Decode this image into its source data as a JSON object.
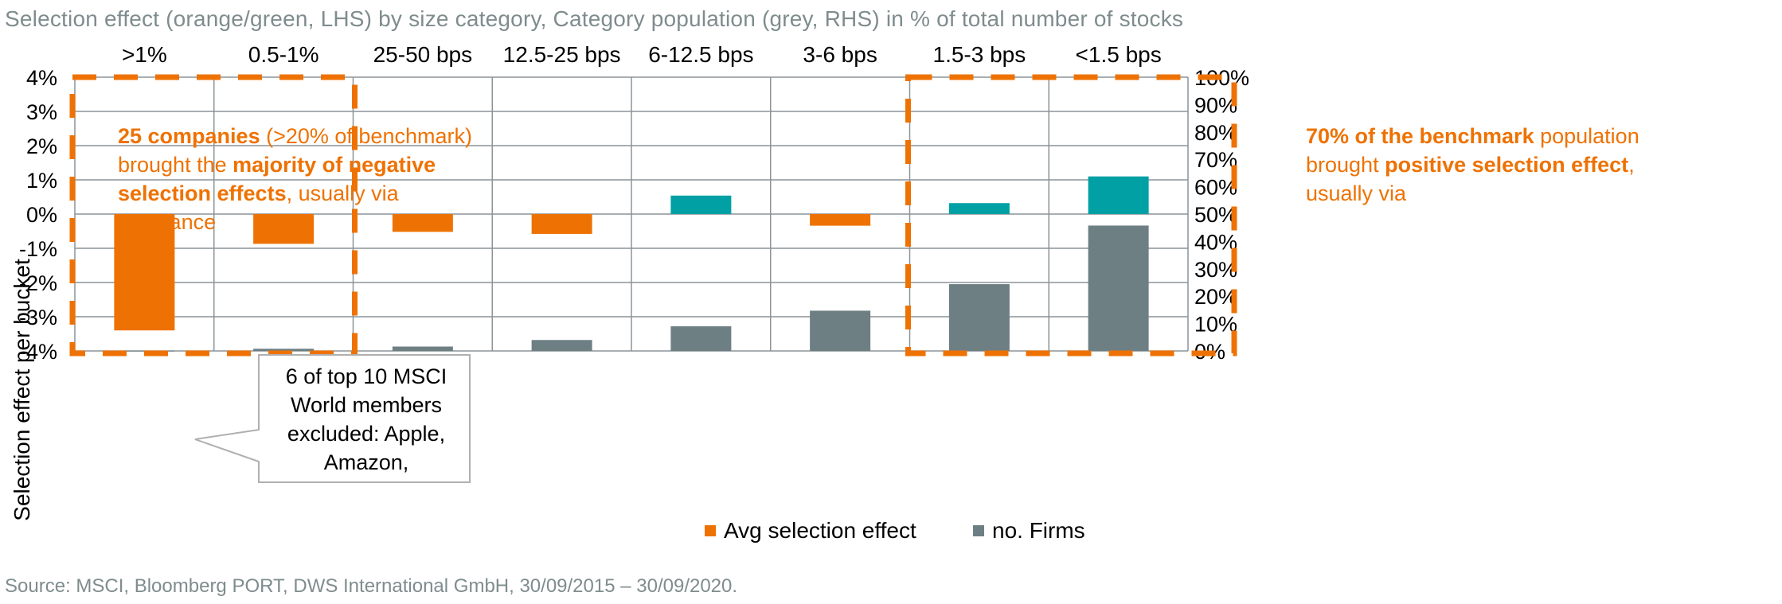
{
  "title": "Selection effect (orange/green, LHS) by size category, Category population (grey, RHS) in % of total number of stocks",
  "source": "Source: MSCI, Bloomberg PORT, DWS International GmbH, 30/09/2015 – 30/09/2020.",
  "colors": {
    "negative": "#ee7203",
    "positive": "#00a0a4",
    "firms": "#6e7f84",
    "grid": "#8c9498",
    "annotation_box": "#ee7203"
  },
  "annotations": {
    "left_box": {
      "p1_bold": "25 companies",
      "p1_rest": " (>20% of benchmark) brought the ",
      "p2_bold": "majority of negative selection effects",
      "p2_rest": ", usually via avoidance"
    },
    "right_box": {
      "p1_bold": "70% of the benchmark",
      "p1_rest": " population brought ",
      "p2_bold": "positive selection effect",
      "p2_rest": ", usually via"
    },
    "callout": "6 of top 10 MSCI World members excluded: Apple, Amazon,"
  },
  "legend": {
    "avg_label": "Avg selection effect",
    "firms_label": "no. Firms"
  },
  "chart_data": {
    "type": "bar",
    "categories": [
      ">1%",
      "0.5-1%",
      "25-50 bps",
      "12.5-25 bps",
      "6-12.5 bps",
      "3-6 bps",
      "1.5-3 bps",
      "<1.5 bps"
    ],
    "ylabel": "Selection effect per bucket",
    "ylim": [
      -4,
      4
    ],
    "ylim_right": [
      0,
      100
    ],
    "yticks_left": [
      "4%",
      "3%",
      "2%",
      "1%",
      "0%",
      "-1%",
      "-2%",
      "-3%",
      "-4%"
    ],
    "yticks_right": [
      "100%",
      "90%",
      "80%",
      "70%",
      "60%",
      "50%",
      "40%",
      "30%",
      "20%",
      "10%",
      "0%"
    ],
    "series": [
      {
        "name": "Avg selection effect",
        "axis": "left",
        "values": [
          -3.4,
          -0.87,
          -0.52,
          -0.58,
          0.54,
          -0.34,
          0.32,
          1.1
        ]
      },
      {
        "name": "no. Firms",
        "axis": "right",
        "values": [
          0.1,
          0.8,
          1.6,
          4.0,
          9.0,
          14.7,
          24.4,
          45.8
        ]
      }
    ],
    "grid": true,
    "legend_position": "bottom"
  }
}
